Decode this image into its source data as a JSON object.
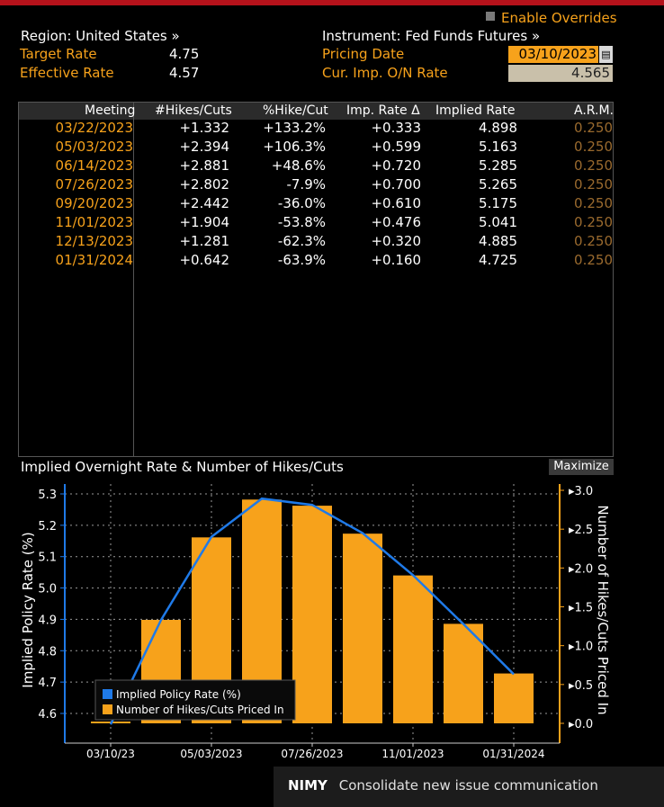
{
  "header": {
    "enable_overrides": "Enable Overrides",
    "region": "Region: United States »",
    "instrument": "Instrument: Fed Funds Futures »",
    "target_rate_label": "Target Rate",
    "target_rate_value": "4.75",
    "effective_rate_label": "Effective Rate",
    "effective_rate_value": "4.57",
    "pricing_date_label": "Pricing Date",
    "pricing_date_value": "03/10/2023",
    "cur_rate_label": "Cur. Imp. O/N Rate",
    "cur_rate_value": "4.565"
  },
  "table": {
    "columns": [
      "Meeting",
      "#Hikes/Cuts",
      "%Hike/Cut",
      "Imp. Rate Δ",
      "Implied Rate",
      "A.R.M."
    ],
    "rows": [
      [
        "03/22/2023",
        "+1.332",
        "+133.2%",
        "+0.333",
        "4.898",
        "0.250"
      ],
      [
        "05/03/2023",
        "+2.394",
        "+106.3%",
        "+0.599",
        "5.163",
        "0.250"
      ],
      [
        "06/14/2023",
        "+2.881",
        "+48.6%",
        "+0.720",
        "5.285",
        "0.250"
      ],
      [
        "07/26/2023",
        "+2.802",
        "-7.9%",
        "+0.700",
        "5.265",
        "0.250"
      ],
      [
        "09/20/2023",
        "+2.442",
        "-36.0%",
        "+0.610",
        "5.175",
        "0.250"
      ],
      [
        "11/01/2023",
        "+1.904",
        "-53.8%",
        "+0.476",
        "5.041",
        "0.250"
      ],
      [
        "12/13/2023",
        "+1.281",
        "-62.3%",
        "+0.320",
        "4.885",
        "0.250"
      ],
      [
        "01/31/2024",
        "+0.642",
        "-63.9%",
        "+0.160",
        "4.725",
        "0.250"
      ]
    ]
  },
  "chart_title": "Implied Overnight Rate & Number of Hikes/Cuts",
  "maximize_label": "Maximize",
  "colors": {
    "orange": "#f7a21b",
    "line": "#1f7ae8"
  },
  "chart_data": {
    "type": "bar",
    "categories": [
      "03/10/23",
      "03/22/2023",
      "05/03/2023",
      "06/14/2023",
      "07/26/2023",
      "09/20/2023",
      "11/01/2023",
      "12/13/2023",
      "01/31/2024"
    ],
    "x_tick_labels": [
      "03/10/23",
      "05/03/2023",
      "07/26/2023",
      "11/01/2023",
      "01/31/2024"
    ],
    "series": [
      {
        "name": "Implied Policy Rate (%)",
        "type": "line",
        "axis": "left",
        "values": [
          4.565,
          4.898,
          5.163,
          5.285,
          5.265,
          5.175,
          5.041,
          4.885,
          4.725
        ]
      },
      {
        "name": "Number of Hikes/Cuts Priced In",
        "type": "bar",
        "axis": "right",
        "values": [
          0.0,
          1.332,
          2.394,
          2.881,
          2.802,
          2.442,
          1.904,
          1.281,
          0.642
        ]
      }
    ],
    "ylabel_left": "Implied Policy Rate (%)",
    "ylabel_right": "Number of Hikes/Cuts Priced In",
    "yticks_left": [
      "4.6",
      "4.7",
      "4.8",
      "4.9",
      "5.0",
      "5.1",
      "5.2",
      "5.3"
    ],
    "yticks_right": [
      "0.0",
      "0.5",
      "1.0",
      "1.5",
      "2.0",
      "2.5",
      "3.0"
    ],
    "ylim_left": [
      4.565,
      5.285
    ],
    "ylim_right": [
      0,
      3.0
    ],
    "grid": true,
    "legend": "bottom-left"
  },
  "footer": {
    "code": "NIMY",
    "description": "Consolidate new issue communication"
  }
}
